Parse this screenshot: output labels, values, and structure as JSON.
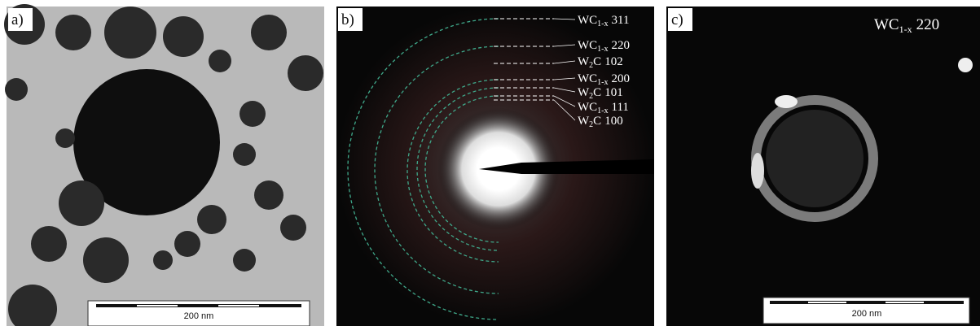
{
  "panels": [
    {
      "label": "a)",
      "scale_bar": "200 nm"
    },
    {
      "label": "b)",
      "reflections": [
        {
          "main": "WC",
          "sub": "1-x",
          "hkl": "311"
        },
        {
          "main": "WC",
          "sub": "1-x",
          "hkl": "220"
        },
        {
          "main": "W",
          "sub": "2",
          "tail": "C",
          "hkl": "102"
        },
        {
          "main": "WC",
          "sub": "1-x",
          "hkl": "200"
        },
        {
          "main": "W",
          "sub": "2",
          "tail": "C",
          "hkl": "101"
        },
        {
          "main": "WC",
          "sub": "1-x",
          "hkl": "111"
        },
        {
          "main": "W",
          "sub": "2",
          "tail": "C",
          "hkl": "100"
        }
      ]
    },
    {
      "label": "c)",
      "reflection": {
        "main": "WC",
        "sub": "1-x",
        "hkl": "220"
      },
      "scale_bar": "200 nm"
    }
  ]
}
